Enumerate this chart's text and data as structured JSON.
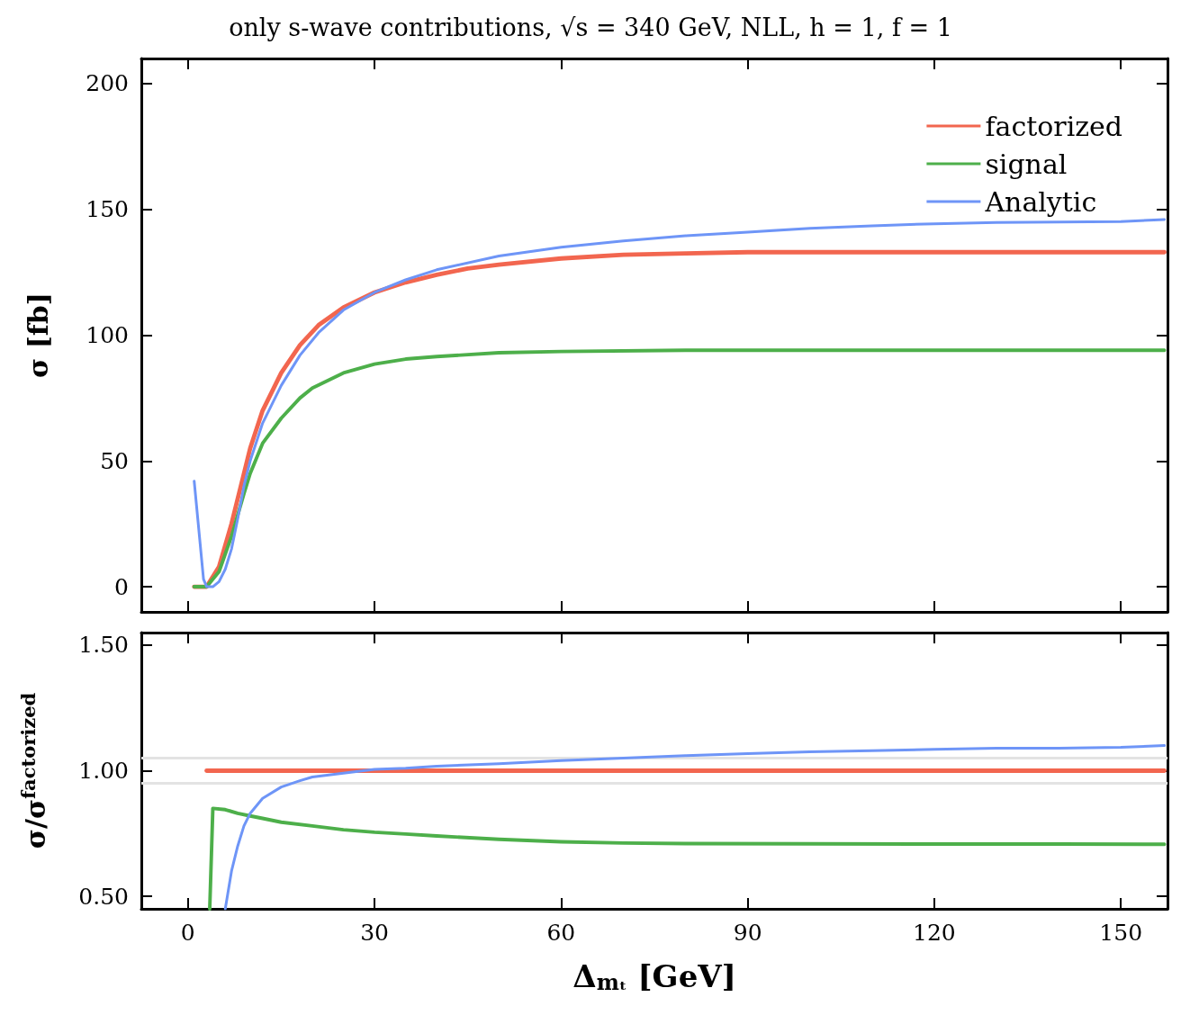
{
  "chart_data": [
    {
      "type": "line",
      "title": "only s-wave contributions, √s = 340 GeV, NLL, h = 1, f = 1",
      "ylabel": "σ [fb]",
      "xlim": [
        -7.5,
        157.5
      ],
      "xticks": [
        0,
        30,
        60,
        90,
        120,
        150
      ],
      "ylim": [
        -10,
        210
      ],
      "yticks": [
        0,
        50,
        100,
        150,
        200
      ],
      "tick_labels": "y",
      "grid": false,
      "legend": "top right",
      "marker": "none",
      "line_style": "solid",
      "series": [
        {
          "name": "factorized",
          "color": "#f2664f",
          "x": [
            1,
            3,
            5,
            7,
            9,
            10,
            12,
            15,
            18,
            21,
            25,
            30,
            35,
            40,
            45,
            50,
            60,
            70,
            80,
            90,
            100,
            120,
            140,
            157
          ],
          "values": [
            0,
            0,
            8,
            25,
            45,
            55,
            70,
            85,
            96,
            104,
            111,
            117,
            121,
            124,
            126.5,
            128,
            130.5,
            132,
            132.5,
            133,
            133,
            133,
            133,
            133
          ]
        },
        {
          "name": "signal",
          "color": "#4daf4a",
          "x": [
            1,
            3,
            5,
            7,
            9,
            10,
            12,
            15,
            18,
            20,
            25,
            30,
            35,
            40,
            50,
            60,
            80,
            100,
            120,
            140,
            157
          ],
          "values": [
            0,
            0,
            6,
            20,
            37,
            45,
            57,
            67,
            75,
            79,
            85,
            88.5,
            90.5,
            91.5,
            93,
            93.5,
            94,
            94,
            94,
            94,
            94
          ]
        },
        {
          "name": "Analytic",
          "color": "#6e95f7",
          "x": [
            1,
            2.5,
            3,
            4,
            5,
            6,
            7,
            8,
            9,
            10,
            12,
            15,
            18,
            21,
            25,
            30,
            35,
            40,
            50,
            60,
            70,
            80,
            90,
            100,
            110,
            120,
            130,
            140,
            150,
            157
          ],
          "values": [
            42,
            3,
            0,
            0,
            2,
            7,
            15,
            27,
            40,
            50,
            65,
            80,
            92,
            101,
            110,
            117,
            122,
            126,
            131.5,
            135,
            137.5,
            139.5,
            141,
            142.5,
            143.5,
            144.3,
            144.8,
            145,
            145.2,
            146
          ]
        }
      ]
    },
    {
      "type": "line",
      "xlabel": "Δ$_{mₜ}$ [GeV]",
      "ylabel": "σ/σ$^{factorized}$",
      "xlim": [
        -7.5,
        157.5
      ],
      "xticks": [
        0,
        30,
        60,
        90,
        120,
        150
      ],
      "ylim": [
        0.45,
        1.55
      ],
      "yticks": [
        {
          "value": 0.5,
          "label": "0.50"
        },
        {
          "value": 1,
          "label": "1.00"
        },
        {
          "value": 1.5,
          "label": "1.50"
        }
      ],
      "grid": false,
      "legend": false,
      "marker": "none",
      "line_style": "solid",
      "ref_lines": [
        {
          "axis": "y",
          "value": 1.05,
          "color": "#e3e3e3"
        },
        {
          "axis": "y",
          "value": 0.95,
          "color": "#e3e3e3"
        }
      ],
      "series": [
        {
          "color": "#f2664f",
          "x": [
            3,
            157
          ],
          "values": [
            1,
            1
          ]
        },
        {
          "color": "#4daf4a",
          "x": [
            3.5,
            4,
            6,
            8,
            10,
            12,
            15,
            20,
            25,
            30,
            35,
            40,
            50,
            60,
            70,
            80,
            100,
            120,
            140,
            157
          ],
          "values": [
            0.45,
            0.85,
            0.845,
            0.83,
            0.82,
            0.81,
            0.795,
            0.78,
            0.765,
            0.755,
            0.748,
            0.74,
            0.727,
            0.717,
            0.712,
            0.71,
            0.709,
            0.708,
            0.708,
            0.707
          ]
        },
        {
          "color": "#6e95f7",
          "x": [
            6,
            7,
            8,
            9,
            10,
            12,
            15,
            18,
            20,
            25,
            30,
            35,
            40,
            50,
            60,
            70,
            80,
            90,
            100,
            110,
            120,
            130,
            140,
            150,
            157
          ],
          "values": [
            0.45,
            0.6,
            0.7,
            0.78,
            0.83,
            0.89,
            0.935,
            0.96,
            0.975,
            0.99,
            1.005,
            1.01,
            1.018,
            1.028,
            1.04,
            1.05,
            1.06,
            1.068,
            1.075,
            1.08,
            1.085,
            1.09,
            1.09,
            1.093,
            1.1
          ]
        }
      ]
    }
  ]
}
